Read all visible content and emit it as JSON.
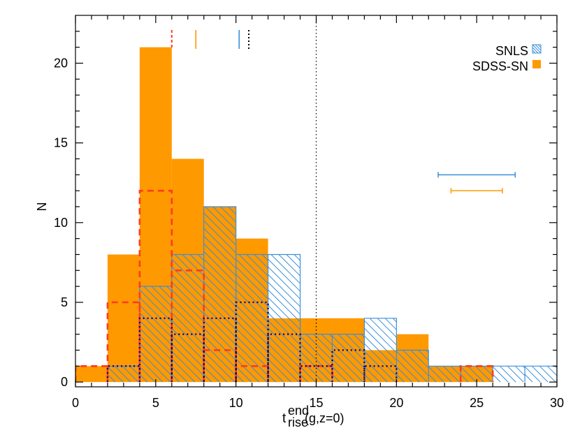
{
  "colors": {
    "sdss": "#ff9900",
    "snls": "#3a8fd9",
    "dashed_red": "#ff3b1f",
    "dotted_navy": "#000080",
    "dotted_black": "#000000",
    "axes": "#000000"
  },
  "chart_data": {
    "type": "bar",
    "subtype": "step-histogram",
    "xlabel_main": "t",
    "xlabel_sup": "end",
    "xlabel_sub": "rise",
    "xlabel_rest": " (g,z=0)",
    "ylabel": "N",
    "xlim": [
      0,
      30
    ],
    "ylim": [
      -0.3,
      23
    ],
    "xticks": [
      0,
      5,
      10,
      15,
      20,
      25,
      30
    ],
    "xtick_labels": [
      "0",
      "5",
      "10",
      "15",
      "20",
      "25",
      "30"
    ],
    "yticks": [
      0,
      5,
      10,
      15,
      20
    ],
    "ytick_labels": [
      "0",
      "5",
      "10",
      "15",
      "20"
    ],
    "bin_edges": [
      0,
      2,
      4,
      6,
      8,
      10,
      12,
      14,
      16,
      18,
      20,
      22,
      24,
      26,
      28,
      30
    ],
    "series": [
      {
        "name": "SDSS-SN",
        "style": "filled",
        "values": [
          1,
          8,
          21,
          14,
          11,
          9,
          4,
          4,
          4,
          2,
          3,
          1,
          1,
          0,
          0
        ]
      },
      {
        "name": "SNLS",
        "style": "hatched",
        "values": [
          0,
          1,
          6,
          8,
          11,
          8,
          8,
          3,
          3,
          4,
          2,
          1,
          1,
          1,
          1
        ]
      },
      {
        "style": "dashed",
        "values": [
          1,
          5,
          12,
          7,
          2,
          1,
          0,
          1,
          0,
          0,
          0,
          0,
          1,
          0,
          0
        ]
      },
      {
        "style": "dotted",
        "values": [
          0,
          1,
          4,
          3,
          4,
          5,
          3,
          1,
          2,
          1,
          0,
          0,
          0,
          0,
          0
        ]
      }
    ],
    "reference_line_x": 15,
    "median_marks": [
      {
        "x": 6.0,
        "style": "dashed-red"
      },
      {
        "x": 7.5,
        "style": "solid-orange"
      },
      {
        "x": 10.2,
        "style": "solid-blue"
      },
      {
        "x": 10.8,
        "style": "dotted-black"
      }
    ],
    "error_bars": [
      {
        "series": "SNLS",
        "center": 25.0,
        "low": 22.6,
        "high": 27.4,
        "y": 13.0
      },
      {
        "series": "SDSS-SN",
        "center": 25.0,
        "low": 23.4,
        "high": 26.6,
        "y": 12.0
      }
    ],
    "legend": {
      "position": "top-right",
      "entries": [
        {
          "label": "SNLS",
          "swatch": "hatched"
        },
        {
          "label": "SDSS-SN",
          "swatch": "filled"
        }
      ]
    }
  }
}
